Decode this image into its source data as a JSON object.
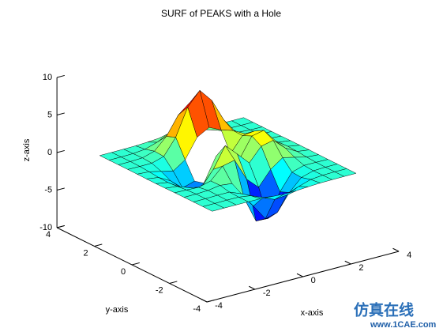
{
  "chart_data": {
    "type": "surface",
    "title": "SURF of PEAKS with a Hole",
    "x_label": "x-axis",
    "y_label": "y-axis",
    "z_label": "z-axis",
    "x": [
      -3,
      -2.5,
      -2,
      -1.5,
      -1,
      -0.5,
      0,
      0.5,
      1,
      1.5,
      2,
      2.5,
      3
    ],
    "y": [
      -3,
      -2.5,
      -2,
      -1.5,
      -1,
      -0.5,
      0,
      0.5,
      1,
      1.5,
      2,
      2.5,
      3
    ],
    "z": [
      [
        0,
        0,
        0,
        0,
        -0.03,
        -0.14,
        -0.24,
        -0.22,
        -0.11,
        -0.03,
        -0.01,
        0,
        0
      ],
      [
        0,
        0,
        0.02,
        0,
        -0.23,
        -0.91,
        -1.57,
        -1.41,
        -0.69,
        -0.18,
        -0.03,
        0,
        0
      ],
      [
        0,
        0.01,
        0.05,
        0.05,
        -0.59,
        -2.64,
        -4.75,
        -4.34,
        -2.1,
        -0.53,
        -0.06,
        0,
        0
      ],
      [
        0,
        0.01,
        0.08,
        0.33,
        0.15,
        -2.19,
        -5.68,
        -5.76,
        -2.63,
        -0.44,
        0.04,
        0.03,
        0
      ],
      [
        -0.01,
        -0.06,
        -0.13,
        0.3,
        1.86,
        2.22,
        -0.72,
        -2.22,
        -0.27,
        0.88,
        0.5,
        0.11,
        0.01
      ],
      [
        -0.03,
        -0.2,
        -0.8,
        -1.21,
        0.8,
        3.55,
        2,
        0.39,
        2.2,
        2.56,
        1.12,
        0.24,
        0.03
      ],
      [
        -0.04,
        -0.3,
        -1.33,
        -2.77,
        -1.65,
        1.48,
        0.98,
        0.38,
        2.94,
        3.27,
        1.41,
        0.3,
        0.03
      ],
      [
        -0.03,
        -0.25,
        -1.12,
        -2.49,
        -2,
        null,
        null,
        0.38,
        2.38,
        2.56,
        1.09,
        0.23,
        0.03
      ],
      [
        -0.01,
        -0.11,
        -0.48,
        -0.86,
        0.23,
        2.8,
        3.69,
        2.94,
        2.43,
        1.58,
        0.58,
        0.11,
        0.01
      ],
      [
        0,
        -0.02,
        -0.01,
        0.47,
        2.61,
        6.2,
        8,
        6.25,
        3.25,
        1.19,
        0.29,
        0.05,
        0
      ],
      [
        0,
        0.01,
        0.08,
        0.55,
        2.1,
        4.55,
        5.85,
        4.56,
        2.21,
        0.68,
        0.13,
        0.02,
        0
      ],
      [
        0,
        0,
        0.03,
        0.19,
        0.69,
        1.47,
        1.88,
        1.47,
        0.7,
        0.21,
        0.04,
        0,
        0
      ],
      [
        0,
        0,
        0.01,
        0.03,
        0.11,
        0.23,
        0.3,
        0.23,
        0.11,
        0.03,
        0.01,
        0,
        0
      ]
    ],
    "xlim": [
      -4,
      4
    ],
    "ylim": [
      -4,
      4
    ],
    "zlim": [
      -10,
      10
    ],
    "xticks": [
      -4,
      -2,
      0,
      2,
      4
    ],
    "yticks": [
      -4,
      -2,
      0,
      2,
      4
    ],
    "zticks": [
      -10,
      -5,
      0,
      5,
      10
    ],
    "colormap": "jet",
    "edge_color": "#000000"
  },
  "watermark": {
    "title": "仿真在线",
    "url": "www.1CAE.com"
  }
}
